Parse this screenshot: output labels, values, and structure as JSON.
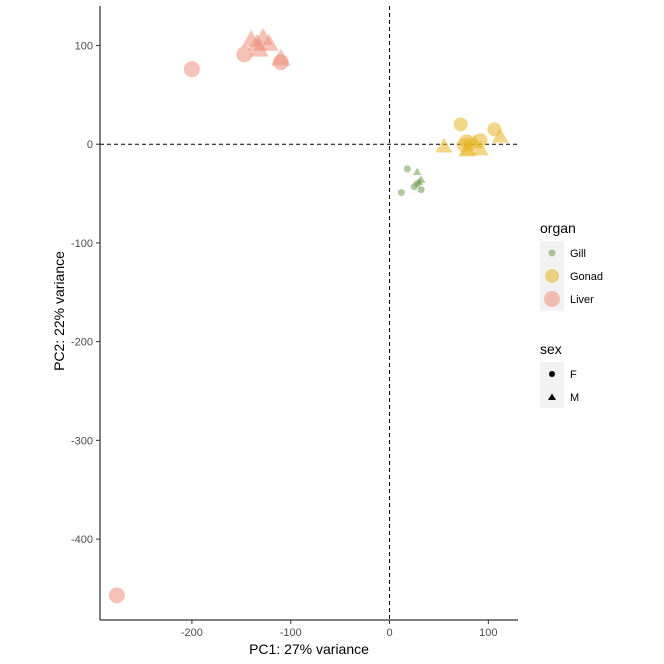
{
  "chart_data": {
    "type": "scatter",
    "xlabel": "PC1: 27% variance",
    "ylabel": "PC2: 22% variance",
    "xlim": [
      -293,
      130
    ],
    "ylim": [
      -482,
      140
    ],
    "xticks": [
      -200,
      -100,
      0,
      100
    ],
    "xtick_labels": [
      "-200",
      "-100",
      "0",
      "100"
    ],
    "yticks": [
      100,
      0,
      -100,
      -200,
      -300,
      -400
    ],
    "ytick_labels": [
      "100",
      "0",
      "-100",
      "-200",
      "-300",
      "-400"
    ],
    "reference_lines": {
      "x": 0,
      "y": 0,
      "style": "dashed"
    },
    "grid": false,
    "legends": [
      {
        "title": "organ",
        "placement": "right",
        "entries": [
          {
            "label": "Gill",
            "color": "#6f9a4b"
          },
          {
            "label": "Gonad",
            "color": "#e8b628"
          },
          {
            "label": "Liver",
            "color": "#ec8f7b"
          }
        ]
      },
      {
        "title": "sex",
        "placement": "right",
        "entries": [
          {
            "label": "F",
            "shape": "circle"
          },
          {
            "label": "M",
            "shape": "triangle"
          }
        ]
      }
    ],
    "series": [
      {
        "organ": "Gill",
        "sex": "F",
        "color": "#6f9a4b",
        "shape": "circle",
        "x": [
          18,
          12,
          25,
          32,
          28
        ],
        "y": [
          -25,
          -49,
          -43,
          -46,
          -40
        ]
      },
      {
        "organ": "Gill",
        "sex": "M",
        "color": "#6f9a4b",
        "shape": "triangle",
        "x": [
          28,
          32,
          30
        ],
        "y": [
          -28,
          -36,
          -38
        ]
      },
      {
        "organ": "Gonad",
        "sex": "F",
        "color": "#e8b628",
        "shape": "circle",
        "x": [
          72,
          78,
          82,
          92,
          106,
          75
        ],
        "y": [
          20,
          3,
          0,
          4,
          15,
          -1
        ]
      },
      {
        "organ": "Gonad",
        "sex": "M",
        "color": "#e8b628",
        "shape": "triangle",
        "x": [
          55,
          80,
          86,
          92,
          112,
          78
        ],
        "y": [
          -2,
          -5,
          2,
          -5,
          8,
          -6
        ]
      },
      {
        "organ": "Liver",
        "sex": "F",
        "color": "#ec8f7b",
        "shape": "circle",
        "x": [
          -200,
          -147,
          -110,
          -276
        ],
        "y": [
          76,
          91,
          83,
          -457
        ]
      },
      {
        "organ": "Liver",
        "sex": "M",
        "color": "#ec8f7b",
        "shape": "triangle",
        "x": [
          -140,
          -128,
          -134,
          -122,
          -110,
          -132
        ],
        "y": [
          106,
          108,
          102,
          102,
          87,
          96
        ]
      }
    ]
  }
}
